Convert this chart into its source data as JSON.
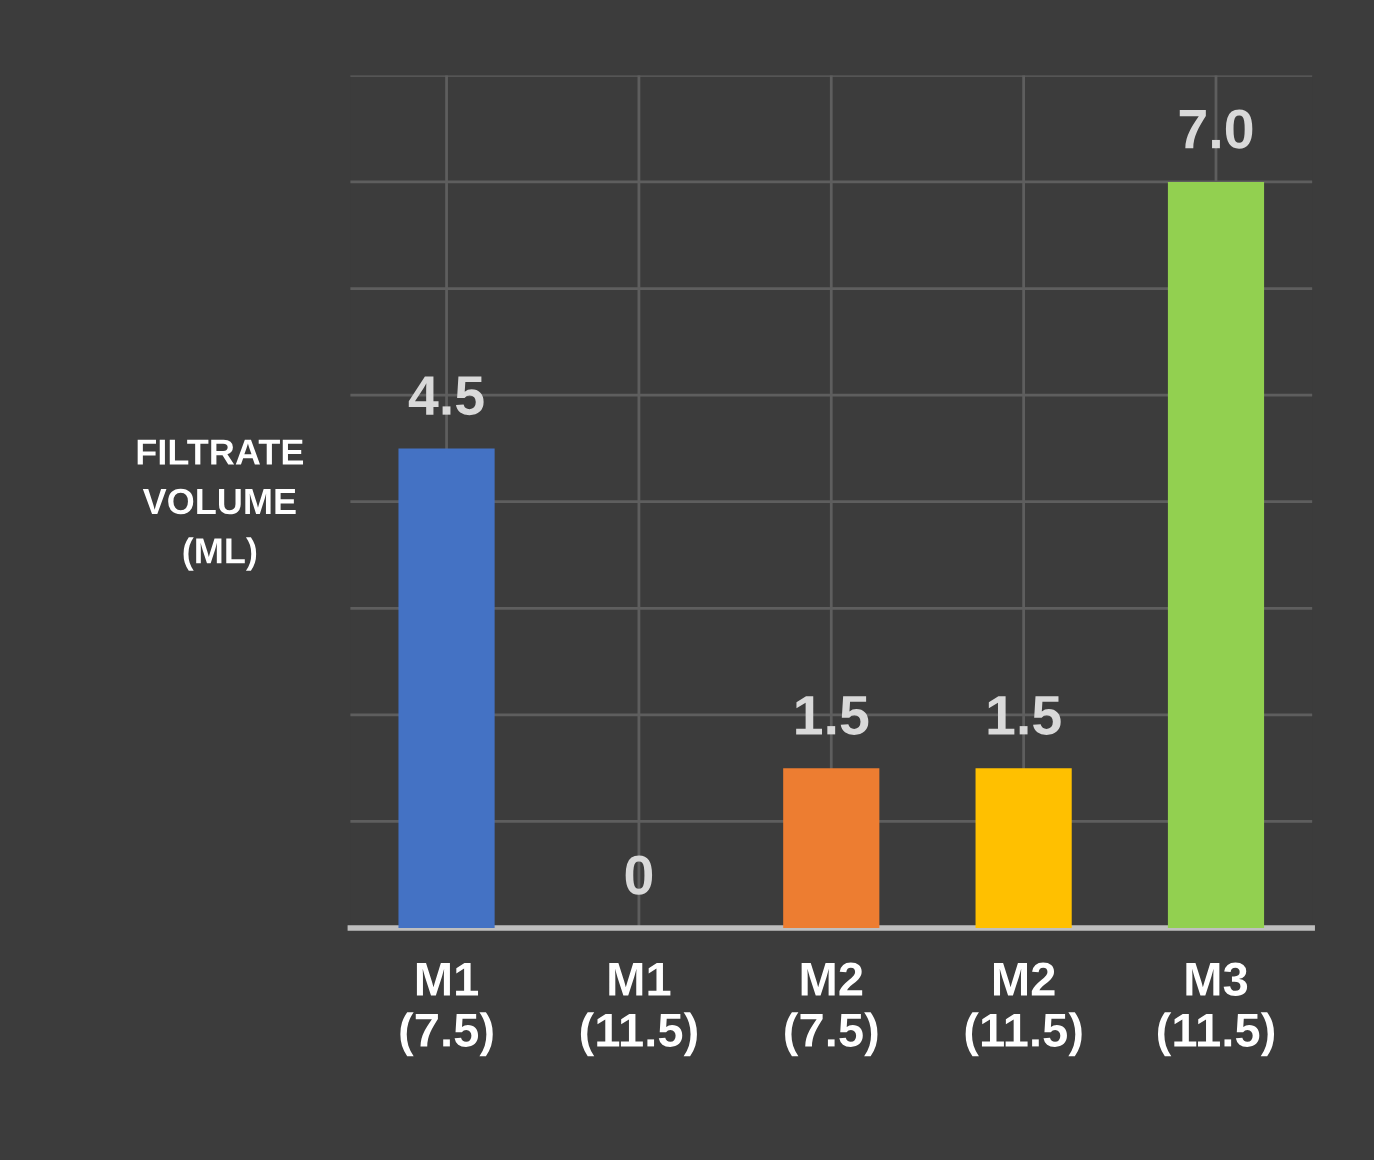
{
  "chart_data": {
    "type": "bar",
    "ylabel": "FILTRATE\nVOLUME\n(ML)",
    "categories": [
      "M1\n(7.5)",
      "M1\n(11.5)",
      "M2\n(7.5)",
      "M2\n(11.5)",
      "M3\n(11.5)"
    ],
    "values": [
      4.5,
      0,
      1.5,
      1.5,
      7.0
    ],
    "colors": [
      "#4472c4",
      "#4472c4",
      "#ed7d31",
      "#ffc000",
      "#92d050"
    ],
    "value_labels": [
      "4.5",
      "0",
      "1.5",
      "1.5",
      "7.0"
    ],
    "ylim": [
      0,
      8
    ],
    "yticks": [
      {
        "value": 0,
        "label": null
      },
      {
        "value": 1,
        "label": null
      },
      {
        "value": 2,
        "label": null
      },
      {
        "value": 3,
        "label": null
      },
      {
        "value": 4,
        "label": null
      },
      {
        "value": 5,
        "label": null
      },
      {
        "value": 6,
        "label": null
      },
      {
        "value": 7,
        "label": null
      },
      {
        "value": 8,
        "label": null
      }
    ],
    "tick_labels": "x",
    "grid": true
  }
}
